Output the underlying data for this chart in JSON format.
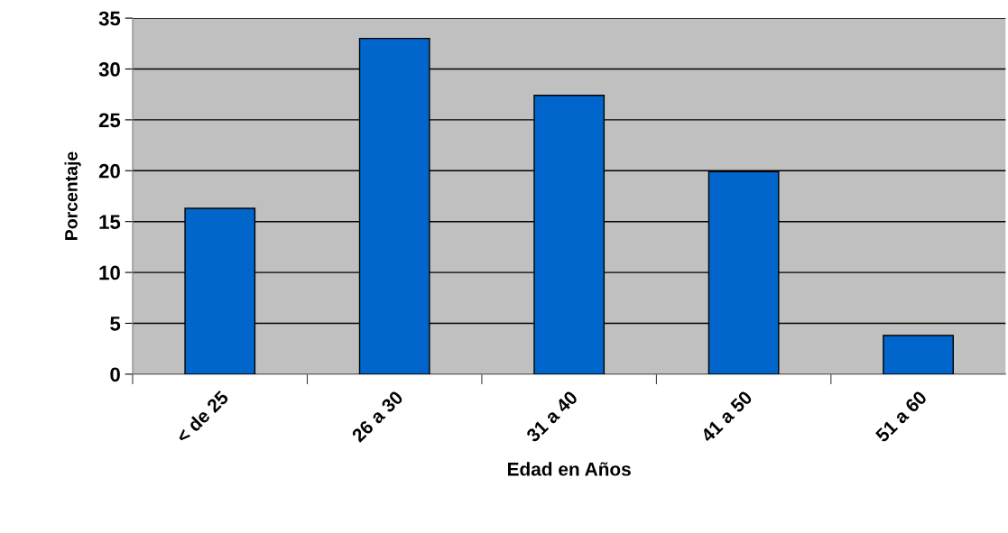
{
  "chart_data": {
    "type": "bar",
    "xlabel": "Edad en Años",
    "ylabel": "Porcentaje",
    "categories": [
      "< de 25",
      "26 a 30",
      "31 a 40",
      "41 a 50",
      "51 a 60"
    ],
    "values": [
      16.3,
      33.0,
      27.4,
      19.9,
      3.8
    ],
    "color": "#0066cc",
    "ylim": [
      0,
      35
    ],
    "yticks": [
      0,
      5,
      10,
      15,
      20,
      25,
      30,
      35
    ],
    "grid": "y",
    "legend": false
  }
}
